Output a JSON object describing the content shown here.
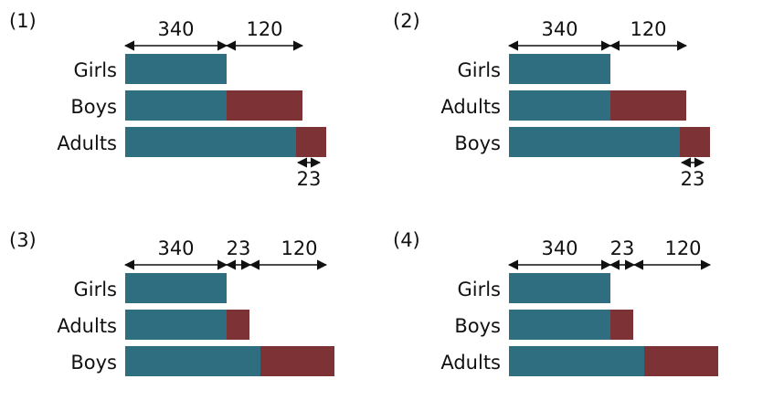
{
  "colors": {
    "base": "#2f6e80",
    "extra": "#7d3335",
    "arrow": "#111111",
    "text": "#111111"
  },
  "panels": [
    {
      "label": "(1)",
      "dimensions": [
        "340",
        "120"
      ],
      "rows": [
        "Girls",
        "Boys",
        "Adults"
      ],
      "bottom_dimension": "23"
    },
    {
      "label": "(2)",
      "dimensions": [
        "340",
        "120"
      ],
      "rows": [
        "Girls",
        "Adults",
        "Boys"
      ],
      "bottom_dimension": "23"
    },
    {
      "label": "(3)",
      "dimensions": [
        "340",
        "23",
        "120"
      ],
      "rows": [
        "Girls",
        "Adults",
        "Boys"
      ]
    },
    {
      "label": "(4)",
      "dimensions": [
        "340",
        "23",
        "120"
      ],
      "rows": [
        "Girls",
        "Boys",
        "Adults"
      ]
    }
  ]
}
